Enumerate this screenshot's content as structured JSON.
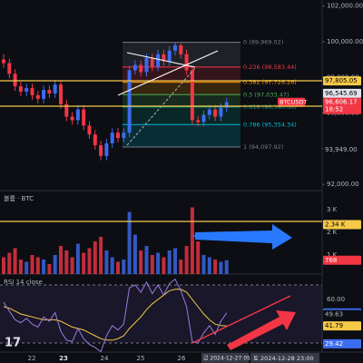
{
  "price_pane": {
    "yticks": [
      {
        "value": 102000,
        "label": "102,000.00"
      },
      {
        "value": 100000,
        "label": "100,000.00"
      },
      {
        "value": 98000,
        "label": "98,000.00"
      },
      {
        "value": 96000,
        "label": "96,000.00"
      },
      {
        "value": 94000,
        "label": "94,000.00"
      },
      {
        "value": 92000,
        "label": "92,000.00"
      }
    ],
    "up_color": "#3d6cf0",
    "down_color": "#f23645",
    "ohlc": [
      [
        99000,
        99300,
        98550,
        98800
      ],
      [
        98800,
        99050,
        97950,
        98200
      ],
      [
        98200,
        98450,
        97250,
        97500
      ],
      [
        97500,
        97750,
        96950,
        97200
      ],
      [
        97200,
        97650,
        96950,
        97400
      ],
      [
        97400,
        97650,
        96750,
        97000
      ],
      [
        97000,
        97250,
        96550,
        96800
      ],
      [
        96800,
        97550,
        96550,
        97300
      ],
      [
        97300,
        97550,
        96850,
        97100
      ],
      [
        97100,
        97850,
        96850,
        97600
      ],
      [
        97600,
        97850,
        96250,
        96500
      ],
      [
        96500,
        96750,
        95550,
        95800
      ],
      [
        95800,
        96050,
        95350,
        95600
      ],
      [
        95600,
        96450,
        95350,
        96200
      ],
      [
        96200,
        96450,
        95050,
        95300
      ],
      [
        95300,
        95550,
        94550,
        94800
      ],
      [
        94800,
        95050,
        93950,
        94200
      ],
      [
        94200,
        94450,
        93350,
        93600
      ],
      [
        93600,
        94550,
        93350,
        94300
      ],
      [
        94300,
        95150,
        94050,
        94900
      ],
      [
        94900,
        95150,
        94350,
        94600
      ],
      [
        94600,
        95150,
        94350,
        94900
      ],
      [
        94900,
        98650,
        94650,
        98400
      ],
      [
        98400,
        98950,
        98150,
        98700
      ],
      [
        98700,
        98950,
        98050,
        98300
      ],
      [
        98300,
        99350,
        98050,
        99100
      ],
      [
        99100,
        99350,
        98350,
        98600
      ],
      [
        98600,
        99550,
        98350,
        99300
      ],
      [
        99300,
        99550,
        98650,
        98900
      ],
      [
        98900,
        99750,
        98650,
        99500
      ],
      [
        99500,
        99969.02,
        99250,
        99800
      ],
      [
        99800,
        99900,
        99050,
        99300
      ],
      [
        99300,
        99550,
        98150,
        98400
      ],
      [
        98400,
        98650,
        95350,
        95600
      ],
      [
        95600,
        95850,
        95250,
        95500
      ],
      [
        95500,
        96150,
        95250,
        95900
      ],
      [
        95900,
        96450,
        95650,
        96200
      ],
      [
        96200,
        96450,
        95550,
        95800
      ],
      [
        95800,
        96550,
        95550,
        96300
      ],
      [
        96300,
        96850,
        96050,
        96606.17
      ]
    ],
    "fib_levels": [
      {
        "value": 99969.02,
        "label": "0 (99,969.02)",
        "color": "#787b86"
      },
      {
        "value": 98583.44,
        "label": "0.236 (98,583.44)",
        "color": "#f23645"
      },
      {
        "value": 97726.26,
        "label": "0.382 (97,726.26)",
        "color": "#ff9800"
      },
      {
        "value": 97033.47,
        "label": "0.5 (97,033.47)",
        "color": "#4caf50"
      },
      {
        "value": 96340.68,
        "label": "0.618 (96,340.68)",
        "color": "#089981"
      },
      {
        "value": 95354.34,
        "label": "0.786 (95,354.34)",
        "color": "#00bcd4"
      },
      {
        "value": 94097.92,
        "label": "1 (94,097.92)",
        "color": "#787b86"
      }
    ],
    "tags": [
      {
        "value": 97805.05,
        "label": "97,805.05",
        "color": "#f7c948"
      },
      {
        "value": 96545.69,
        "label": "96,545.69",
        "color": "#e0e3eb"
      },
      {
        "value": 93949,
        "label": "93,949.00",
        "color": "#0c0e14"
      }
    ],
    "symbol_tag": {
      "symbol": "BTCUSDT",
      "value": 96606.17,
      "label": "96,606.17",
      "countdown": "18:52",
      "color": "#f23645"
    }
  },
  "volume_pane": {
    "title": "볼륨 · BTC",
    "yticks": [
      {
        "value": 3,
        "label": "3 K"
      },
      {
        "value": 2,
        "label": "2 K"
      },
      {
        "value": 1,
        "label": "1 K"
      }
    ],
    "values": [
      0.9,
      1.1,
      1.3,
      0.8,
      0.7,
      1.0,
      0.9,
      0.8,
      0.6,
      1.0,
      1.4,
      1.2,
      0.9,
      1.5,
      1.1,
      1.3,
      1.6,
      1.8,
      1.2,
      0.9,
      0.7,
      0.8,
      2.9,
      1.9,
      1.2,
      1.4,
      1.0,
      1.1,
      0.9,
      1.2,
      1.3,
      0.8,
      1.4,
      3.1,
      1.6,
      1.0,
      0.9,
      0.8,
      0.7,
      0.768
    ],
    "tags": [
      {
        "value": 2.34,
        "label": "2.34 K",
        "color": "#f7c948"
      },
      {
        "value": 0.768,
        "label": "768",
        "color": "#f23645"
      }
    ]
  },
  "rsi_pane": {
    "title": "RSI 14 close",
    "yticks": [
      {
        "value": 60,
        "label": "60.00"
      }
    ],
    "upper": 70,
    "lower": 30,
    "rsi": {
      "color": "#9c7be0",
      "values": [
        58,
        52,
        46,
        44,
        47,
        43,
        41,
        48,
        45,
        51,
        38,
        32,
        31,
        40,
        33,
        29,
        27,
        24,
        35,
        42,
        39,
        43,
        68,
        70,
        65,
        72,
        64,
        70,
        63,
        71,
        74,
        66,
        55,
        31,
        30,
        37,
        42,
        36,
        45,
        50.76
      ]
    },
    "ma": {
      "color": "#f7c948",
      "values": [
        55,
        54,
        52,
        50,
        49,
        48,
        47,
        46,
        46,
        46,
        45,
        43,
        41,
        40,
        39,
        37,
        35,
        33,
        32,
        32,
        33,
        35,
        40,
        44,
        48,
        53,
        57,
        60,
        63,
        66,
        67,
        67,
        65,
        60,
        55,
        50,
        46,
        43,
        42,
        41.79
      ]
    },
    "tags": [
      {
        "value": 50.76,
        "label": "50.76",
        "color": "#3d6cf0"
      },
      {
        "value": 49.63,
        "label": "49.63",
        "color": "#0c0e14"
      },
      {
        "value": 41.79,
        "label": "41.79",
        "color": "#f7c948"
      },
      {
        "value": 29.42,
        "label": "29.42",
        "color": "#3d6cf0"
      }
    ]
  },
  "time_axis": {
    "labels": [
      "22",
      "23",
      "24",
      "25",
      "26"
    ],
    "cursor_1": "금 2024-12-27 05:0",
    "cursor_2": "토 2024-12-28 23:00"
  }
}
